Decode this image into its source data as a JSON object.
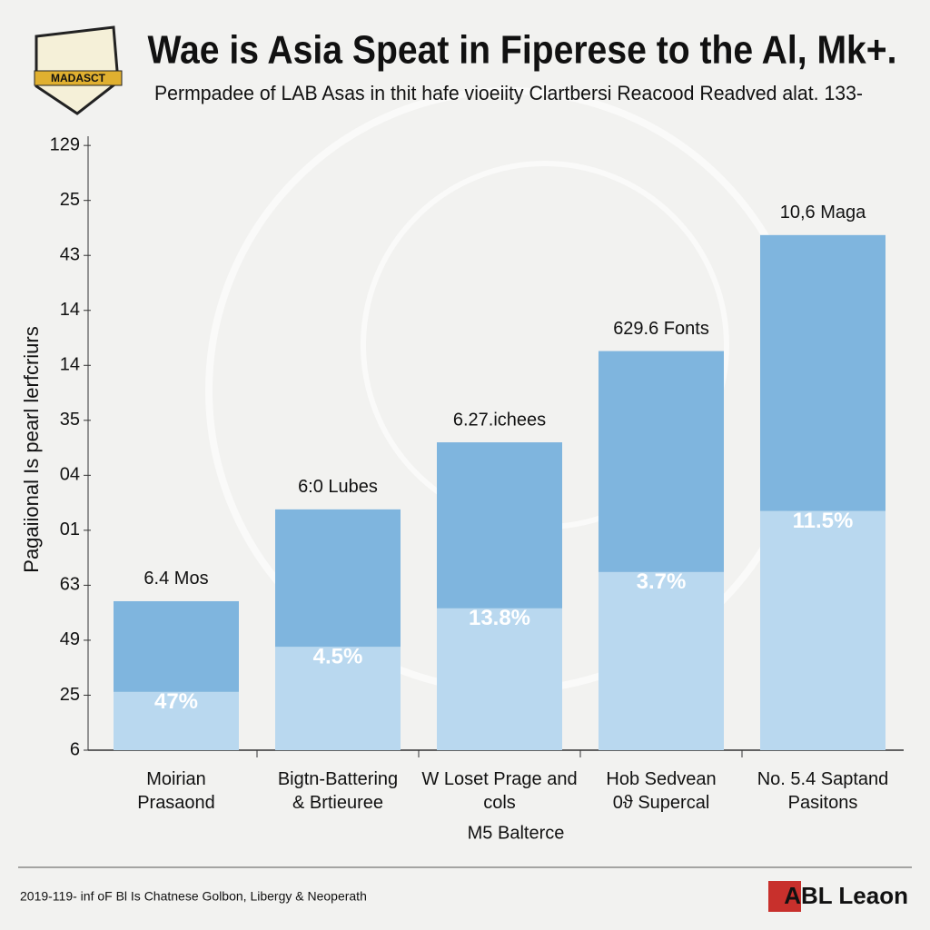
{
  "chart_data": {
    "type": "stacked_bar",
    "title": "Wae is Asia Speat in Fiperese to the Al, Mk+.",
    "subtitle": "Permpadee of LAB Asas in thit hafe vioeiity Clartbersi Reacood Readved alat. 133-",
    "badge": "MADASCT",
    "y_label": "Pagaiional Is pearl lerfcriurs",
    "x_label": "M5 Balterce",
    "footer": "2019-119- inf oF Bl Is Chatnese Golbon, Libergy & Neoperath",
    "logo": "ABL Leaon",
    "categories": [
      "Moirian\nPrasaond",
      "Bigtn-Battering\n& Brtieuree",
      "W Loset Prage and cols",
      "Hob Sedvean\n0ϑ Supercal",
      "No. 5.4 Saptand\nPasitons"
    ],
    "series": [
      {
        "color": "#b9d8ef",
        "values": [
          1.06,
          1.88,
          2.58,
          3.24,
          4.35
        ]
      },
      {
        "color": "#7fb5de",
        "values": [
          1.65,
          2.5,
          3.02,
          4.02,
          5.02
        ]
      }
    ],
    "annotations": {
      "inner": [
        "47%",
        "4.5%",
        "13.8%",
        "3.7%",
        "11.5%"
      ],
      "top": [
        "6.4 Mos",
        "6:0 Lubes",
        "6.27.ichees",
        "629.6 Fonts",
        "10,6 Maga"
      ]
    },
    "ylim": [
      0,
      11.3
    ],
    "yticks": [
      {
        "value": 0,
        "label": "6"
      },
      {
        "value": 1,
        "label": "25"
      },
      {
        "value": 2,
        "label": "49"
      },
      {
        "value": 3,
        "label": "63"
      },
      {
        "value": 4,
        "label": "01"
      },
      {
        "value": 5,
        "label": "04"
      },
      {
        "value": 6,
        "label": "35"
      },
      {
        "value": 7,
        "label": "14"
      },
      {
        "value": 8,
        "label": "14"
      },
      {
        "value": 9,
        "label": "43"
      },
      {
        "value": 10,
        "label": "25"
      },
      {
        "value": 11,
        "label": "129"
      }
    ]
  }
}
